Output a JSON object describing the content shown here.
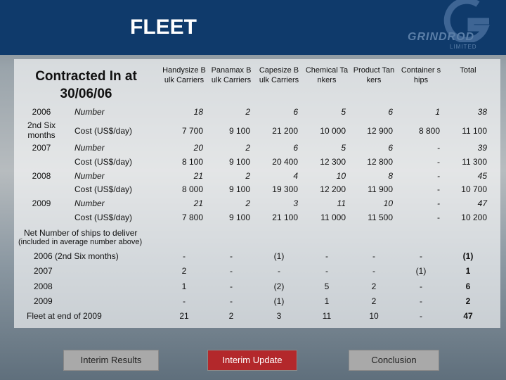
{
  "header": {
    "title": "FLEET",
    "logo": {
      "name": "GRINDROD",
      "tagline": "LIMITED"
    }
  },
  "table": {
    "caption": "Contracted In at 30/06/06",
    "columns": [
      "Handysize Bulk Carriers",
      "Panamax Bulk Carriers",
      "Capesize Bulk Carriers",
      "Chemical Tankers",
      "Product Tankers",
      "Container ships",
      "Total"
    ],
    "rows": [
      {
        "year": "2006",
        "metric": "Number",
        "values": [
          "18",
          "2",
          "6",
          "5",
          "6",
          "1",
          "38"
        ]
      },
      {
        "year": "2nd Six months",
        "metric": "Cost (US$/day)",
        "values": [
          "7 700",
          "9 100",
          "21 200",
          "10 000",
          "12 900",
          "8 800",
          "11 100"
        ]
      },
      {
        "year": "2007",
        "metric": "Number",
        "values": [
          "20",
          "2",
          "6",
          "5",
          "6",
          "-",
          "39"
        ]
      },
      {
        "metric": "Cost (US$/day)",
        "values": [
          "8 100",
          "9 100",
          "20 400",
          "12 300",
          "12 800",
          "-",
          "11 300"
        ]
      },
      {
        "year": "2008",
        "metric": "Number",
        "values": [
          "21",
          "2",
          "4",
          "10",
          "8",
          "-",
          "45"
        ]
      },
      {
        "metric": "Cost (US$/day)",
        "values": [
          "8 000",
          "9 100",
          "19 300",
          "12 200",
          "11 900",
          "-",
          "10 700"
        ]
      },
      {
        "year": "2009",
        "metric": "Number",
        "values": [
          "21",
          "2",
          "3",
          "11",
          "10",
          "-",
          "47"
        ]
      },
      {
        "metric": "Cost (US$/day)",
        "values": [
          "7 800",
          "9 100",
          "21 100",
          "11 000",
          "11 500",
          "-",
          "10 200"
        ]
      }
    ]
  },
  "deliveries": {
    "title": "Net Number of ships to deliver",
    "subtitle": "(included in average number above)",
    "rows": [
      {
        "label": "2006 (2nd Six months)",
        "values": [
          "-",
          "-",
          "(1)",
          "-",
          "-",
          "-",
          "(1)"
        ]
      },
      {
        "label": "2007",
        "values": [
          "2",
          "-",
          "-",
          "-",
          "-",
          "(1)",
          "1"
        ]
      },
      {
        "label": "2008",
        "values": [
          "1",
          "-",
          "(2)",
          "5",
          "2",
          "-",
          "6"
        ]
      },
      {
        "label": "2009",
        "values": [
          "-",
          "-",
          "(1)",
          "1",
          "2",
          "-",
          "2"
        ]
      },
      {
        "label": "Fleet at end of 2009",
        "values": [
          "21",
          "2",
          "3",
          "11",
          "10",
          "-",
          "47"
        ]
      }
    ]
  },
  "navigation": {
    "buttons": [
      "Interim Results",
      "Interim Update",
      "Conclusion"
    ],
    "active": 1
  }
}
